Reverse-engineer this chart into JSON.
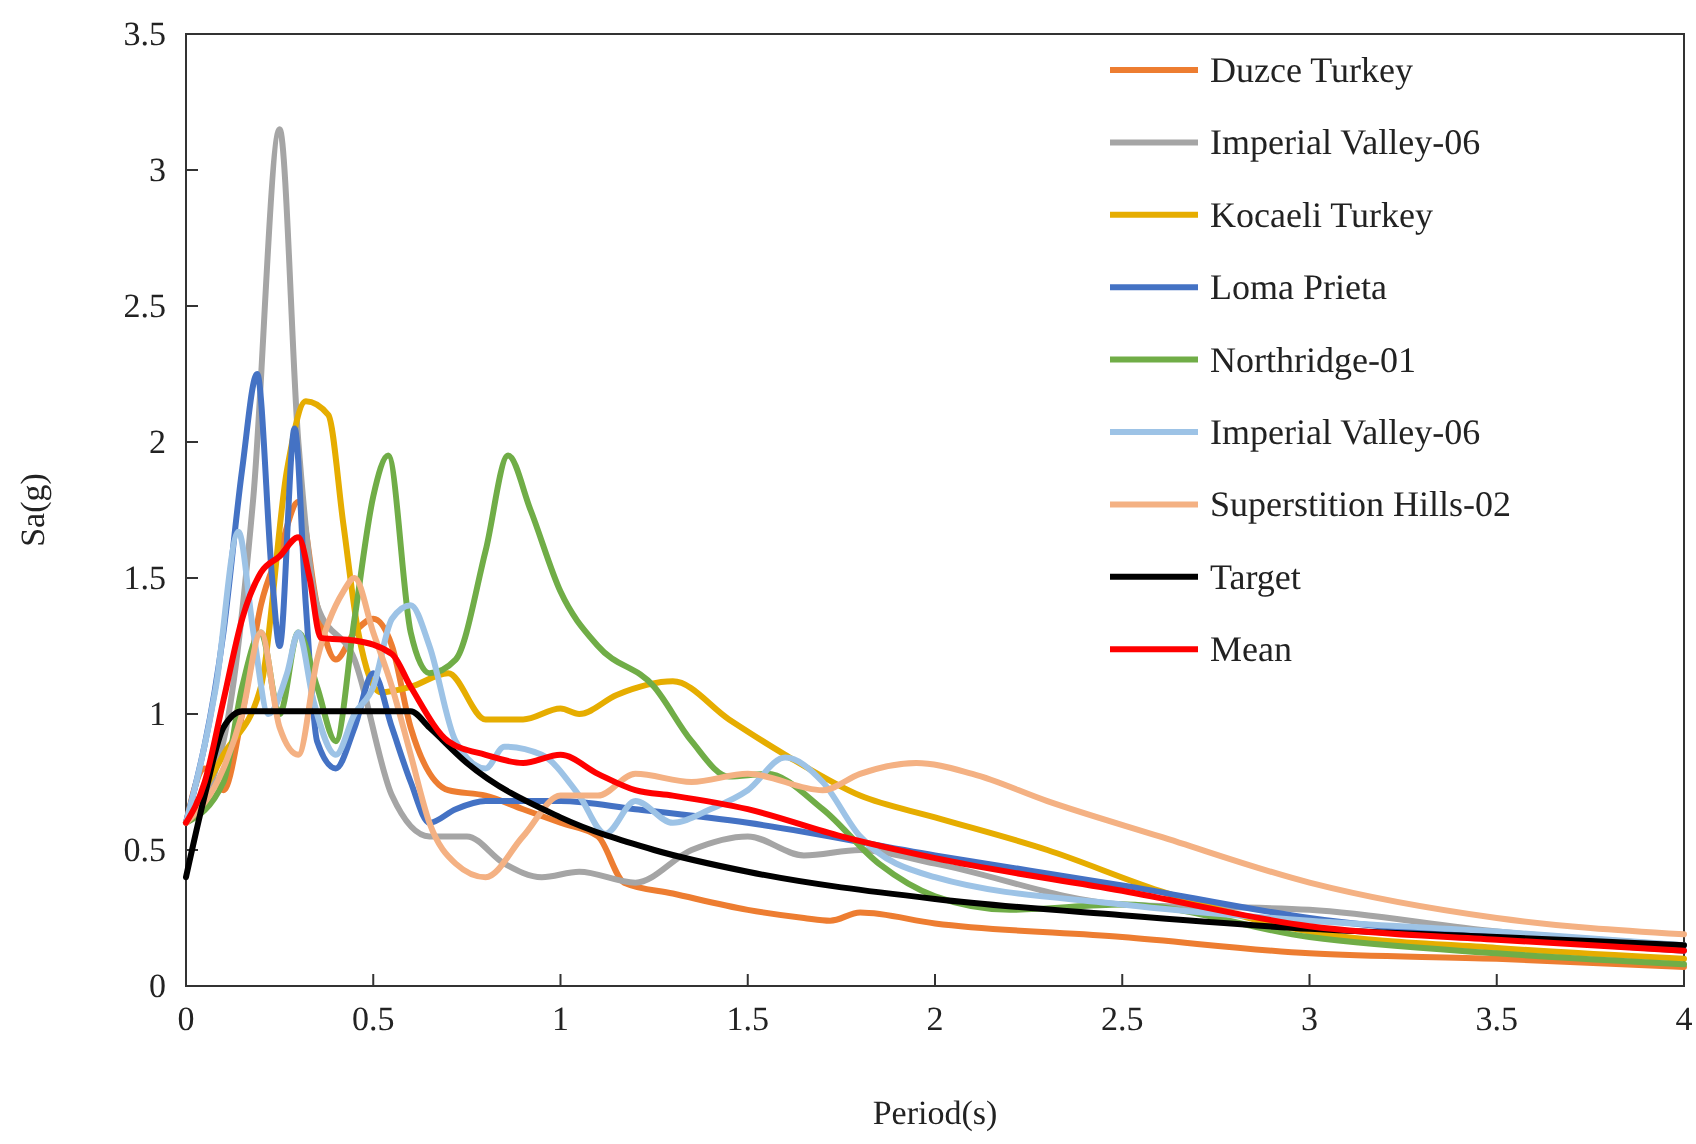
{
  "chart_data": {
    "type": "line",
    "xlabel": "Period(s)",
    "ylabel": "Sa(g)",
    "xlim": [
      0,
      4
    ],
    "ylim": [
      0,
      3.5
    ],
    "xticks": [
      0,
      0.5,
      1,
      1.5,
      2,
      2.5,
      3,
      3.5,
      4
    ],
    "yticks": [
      0,
      0.5,
      1,
      1.5,
      2,
      2.5,
      3,
      3.5
    ],
    "grid": false,
    "legend": "top right",
    "marker": "none",
    "line_style": "solid",
    "series": [
      {
        "name": "Duzce Turkey",
        "color": "#ed7d31",
        "x": [
          0,
          0.05,
          0.1,
          0.15,
          0.2,
          0.25,
          0.3,
          0.35,
          0.4,
          0.45,
          0.5,
          0.55,
          0.6,
          0.7,
          0.8,
          0.9,
          1.0,
          1.1,
          1.17,
          1.3,
          1.5,
          1.65,
          1.72,
          1.8,
          2.0,
          2.5,
          3.0,
          3.5,
          4.0
        ],
        "values": [
          0.6,
          0.8,
          0.72,
          1.0,
          1.4,
          1.6,
          1.78,
          1.4,
          1.2,
          1.3,
          1.35,
          1.25,
          0.95,
          0.72,
          0.7,
          0.65,
          0.6,
          0.55,
          0.38,
          0.34,
          0.28,
          0.25,
          0.24,
          0.27,
          0.23,
          0.18,
          0.12,
          0.1,
          0.07
        ]
      },
      {
        "name": "Imperial Valley-06",
        "color": "#a5a5a5",
        "x": [
          0,
          0.1,
          0.18,
          0.25,
          0.3,
          0.35,
          0.45,
          0.55,
          0.65,
          0.75,
          0.85,
          0.95,
          1.05,
          1.2,
          1.35,
          1.5,
          1.65,
          1.8,
          2.0,
          2.5,
          3.0,
          3.5,
          4.0
        ],
        "values": [
          0.6,
          0.9,
          1.8,
          3.15,
          2.0,
          1.4,
          1.2,
          0.7,
          0.55,
          0.55,
          0.45,
          0.4,
          0.42,
          0.38,
          0.5,
          0.55,
          0.48,
          0.5,
          0.45,
          0.3,
          0.28,
          0.2,
          0.15
        ]
      },
      {
        "name": "Kocaeli Turkey",
        "color": "#e6ad00",
        "x": [
          0,
          0.1,
          0.2,
          0.27,
          0.32,
          0.38,
          0.42,
          0.46,
          0.52,
          0.6,
          0.7,
          0.8,
          0.9,
          1.0,
          1.05,
          1.15,
          1.3,
          1.45,
          1.6,
          1.8,
          2.0,
          2.3,
          2.6,
          3.0,
          3.5,
          4.0
        ],
        "values": [
          0.6,
          0.85,
          1.1,
          1.9,
          2.15,
          2.1,
          1.7,
          1.3,
          1.08,
          1.1,
          1.15,
          0.98,
          0.98,
          1.02,
          1.0,
          1.07,
          1.12,
          0.98,
          0.85,
          0.7,
          0.62,
          0.5,
          0.35,
          0.2,
          0.14,
          0.1
        ]
      },
      {
        "name": "Loma Prieta",
        "color": "#4472c4",
        "x": [
          0,
          0.1,
          0.15,
          0.19,
          0.23,
          0.25,
          0.29,
          0.32,
          0.35,
          0.4,
          0.45,
          0.5,
          0.55,
          0.6,
          0.65,
          0.72,
          0.8,
          1.0,
          1.2,
          1.5,
          2.0,
          2.5,
          3.0,
          3.5,
          4.0
        ],
        "values": [
          0.6,
          1.3,
          1.9,
          2.25,
          1.5,
          1.25,
          2.05,
          1.4,
          0.9,
          0.8,
          0.95,
          1.15,
          0.95,
          0.75,
          0.6,
          0.65,
          0.68,
          0.68,
          0.65,
          0.6,
          0.48,
          0.37,
          0.25,
          0.18,
          0.13
        ]
      },
      {
        "name": "Northridge-01",
        "color": "#70ad47",
        "x": [
          0,
          0.1,
          0.15,
          0.2,
          0.25,
          0.3,
          0.35,
          0.4,
          0.45,
          0.5,
          0.54,
          0.6,
          0.65,
          0.72,
          0.8,
          0.86,
          0.92,
          1.0,
          1.1,
          1.25,
          1.35,
          1.45,
          1.55,
          1.7,
          1.85,
          2.0,
          2.2,
          2.5,
          3.0,
          3.5,
          4.0
        ],
        "values": [
          0.6,
          0.75,
          1.1,
          1.3,
          1.0,
          1.3,
          1.1,
          0.9,
          1.35,
          1.8,
          1.95,
          1.3,
          1.15,
          1.2,
          1.6,
          1.95,
          1.75,
          1.45,
          1.25,
          1.1,
          0.9,
          0.77,
          0.78,
          0.65,
          0.45,
          0.33,
          0.28,
          0.3,
          0.18,
          0.12,
          0.08
        ]
      },
      {
        "name": "Imperial Valley-06",
        "color": "#9dc3e6",
        "x": [
          0,
          0.08,
          0.14,
          0.18,
          0.22,
          0.27,
          0.3,
          0.34,
          0.4,
          0.45,
          0.5,
          0.55,
          0.6,
          0.65,
          0.72,
          0.8,
          0.85,
          0.95,
          1.05,
          1.12,
          1.2,
          1.3,
          1.4,
          1.5,
          1.6,
          1.7,
          1.8,
          2.0,
          2.5,
          3.0,
          3.5,
          4.0
        ],
        "values": [
          0.6,
          1.1,
          1.67,
          1.3,
          1.0,
          1.15,
          1.3,
          1.05,
          0.85,
          1.0,
          1.1,
          1.35,
          1.4,
          1.25,
          0.9,
          0.8,
          0.88,
          0.85,
          0.7,
          0.56,
          0.68,
          0.6,
          0.65,
          0.72,
          0.84,
          0.75,
          0.55,
          0.4,
          0.3,
          0.24,
          0.2,
          0.15
        ]
      },
      {
        "name": "Superstition Hills-02",
        "color": "#f4b183",
        "x": [
          0,
          0.1,
          0.15,
          0.2,
          0.25,
          0.3,
          0.35,
          0.42,
          0.45,
          0.5,
          0.55,
          0.6,
          0.65,
          0.72,
          0.8,
          0.9,
          1.0,
          1.1,
          1.2,
          1.35,
          1.5,
          1.7,
          1.8,
          1.95,
          2.1,
          2.3,
          2.6,
          3.0,
          3.5,
          4.0
        ],
        "values": [
          0.6,
          0.8,
          1.0,
          1.3,
          0.95,
          0.85,
          1.2,
          1.45,
          1.5,
          1.3,
          1.1,
          0.85,
          0.6,
          0.45,
          0.4,
          0.55,
          0.7,
          0.7,
          0.78,
          0.75,
          0.78,
          0.72,
          0.78,
          0.82,
          0.78,
          0.68,
          0.55,
          0.38,
          0.25,
          0.19
        ]
      },
      {
        "name": "Target",
        "color": "#000000",
        "x": [
          0,
          0.05,
          0.1,
          0.15,
          0.6,
          0.65,
          0.75,
          1.0,
          1.25,
          1.5,
          2.0,
          2.5,
          3.0,
          3.5,
          4.0
        ],
        "values": [
          0.4,
          0.7,
          0.95,
          1.01,
          1.01,
          0.95,
          0.82,
          0.62,
          0.5,
          0.42,
          0.32,
          0.26,
          0.21,
          0.18,
          0.15
        ]
      },
      {
        "name": "Mean",
        "color": "#ff0000",
        "x": [
          0,
          0.05,
          0.1,
          0.15,
          0.2,
          0.25,
          0.3,
          0.33,
          0.36,
          0.45,
          0.55,
          0.6,
          0.7,
          0.8,
          0.9,
          1.0,
          1.1,
          1.2,
          1.3,
          1.5,
          1.75,
          2.0,
          2.5,
          3.0,
          3.5,
          4.0
        ],
        "values": [
          0.6,
          0.75,
          1.05,
          1.35,
          1.52,
          1.58,
          1.65,
          1.5,
          1.28,
          1.27,
          1.22,
          1.1,
          0.9,
          0.85,
          0.82,
          0.85,
          0.78,
          0.72,
          0.7,
          0.65,
          0.55,
          0.47,
          0.35,
          0.22,
          0.17,
          0.13
        ]
      }
    ]
  }
}
